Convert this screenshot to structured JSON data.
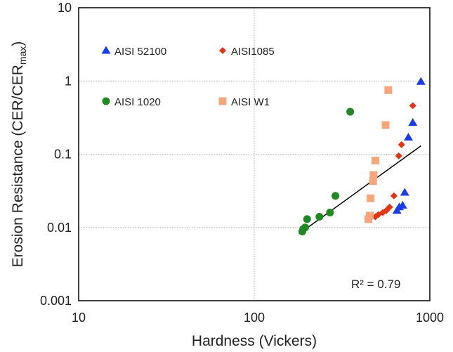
{
  "chart_data": {
    "type": "scatter",
    "x_scale": "log",
    "y_scale": "log",
    "xlim": [
      10,
      1000
    ],
    "ylim": [
      0.001,
      10
    ],
    "xlabel": "Hardness (Vickers)",
    "ylabel": "Erosion Resistance (CER/CER",
    "ylabel_sub": "max",
    "ylabel_suffix": ")",
    "x_ticks": [
      10,
      100,
      1000
    ],
    "x_tick_labels": [
      "10",
      "100",
      "1000"
    ],
    "y_ticks": [
      0.001,
      0.01,
      0.1,
      1,
      10
    ],
    "y_tick_labels": [
      "0.001",
      "0.01",
      "0.1",
      "1",
      "10"
    ],
    "grid": true,
    "legend_position": "upper-left, inside plot area",
    "series": [
      {
        "name": "AISI 52100",
        "marker": "triangle",
        "color": "#1a3cf0",
        "points": [
          {
            "x": 890,
            "y": 0.98
          },
          {
            "x": 800,
            "y": 0.27
          },
          {
            "x": 755,
            "y": 0.17
          },
          {
            "x": 720,
            "y": 0.03
          },
          {
            "x": 700,
            "y": 0.02
          },
          {
            "x": 670,
            "y": 0.019
          },
          {
            "x": 650,
            "y": 0.017
          }
        ]
      },
      {
        "name": "AISI1085",
        "marker": "diamond",
        "color": "#e63312",
        "points": [
          {
            "x": 800,
            "y": 0.46
          },
          {
            "x": 690,
            "y": 0.135
          },
          {
            "x": 665,
            "y": 0.095
          },
          {
            "x": 625,
            "y": 0.027
          },
          {
            "x": 590,
            "y": 0.019
          },
          {
            "x": 565,
            "y": 0.017
          },
          {
            "x": 540,
            "y": 0.016
          },
          {
            "x": 510,
            "y": 0.015
          },
          {
            "x": 490,
            "y": 0.014
          }
        ]
      },
      {
        "name": "AISI 1020",
        "marker": "circle",
        "color": "#1f8a24",
        "points": [
          {
            "x": 352,
            "y": 0.38
          },
          {
            "x": 290,
            "y": 0.027
          },
          {
            "x": 270,
            "y": 0.016
          },
          {
            "x": 235,
            "y": 0.014
          },
          {
            "x": 200,
            "y": 0.013
          },
          {
            "x": 195,
            "y": 0.01
          },
          {
            "x": 190,
            "y": 0.0095
          },
          {
            "x": 188,
            "y": 0.0088
          }
        ]
      },
      {
        "name": "AISI W1",
        "marker": "square",
        "color": "#f7a57a",
        "points": [
          {
            "x": 580,
            "y": 0.75
          },
          {
            "x": 560,
            "y": 0.25
          },
          {
            "x": 490,
            "y": 0.082
          },
          {
            "x": 478,
            "y": 0.052
          },
          {
            "x": 475,
            "y": 0.043
          },
          {
            "x": 460,
            "y": 0.025
          },
          {
            "x": 455,
            "y": 0.0145
          },
          {
            "x": 447,
            "y": 0.013
          }
        ]
      }
    ],
    "trendline": {
      "type": "power",
      "color": "#000000",
      "x_range": [
        180,
        890
      ],
      "y_range": [
        0.0082,
        0.13
      ]
    },
    "annotations": [
      {
        "text": "R² = 0.79",
        "position": "lower-right, inside plot area"
      }
    ]
  }
}
